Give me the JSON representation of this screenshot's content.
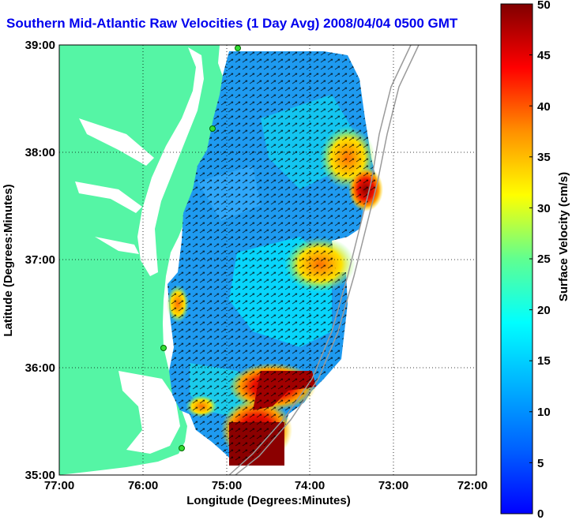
{
  "title": "Southern Mid-Atlantic Raw Velocities (1 Day Avg) 2008/04/04 0500 GMT",
  "map": {
    "xlabel": "Longitude (Degrees:Minutes)",
    "ylabel": "Latitude (Degrees:Minutes)",
    "x_ticks": [
      "77:00",
      "76:00",
      "75:00",
      "74:00",
      "73:00",
      "72:00"
    ],
    "y_ticks": [
      "39:00",
      "38:00",
      "37:00",
      "36:00",
      "35:00"
    ],
    "land_color": "#55f5a5",
    "grid": "dotted"
  },
  "colorbar": {
    "label": "Surface Velocity (cm/s)",
    "ticks": [
      "0",
      "5",
      "10",
      "15",
      "20",
      "25",
      "30",
      "35",
      "40",
      "45",
      "50"
    ],
    "colormap": "jet",
    "range": [
      0,
      50
    ]
  },
  "chart_data": {
    "type": "heatmap",
    "title": "Southern Mid-Atlantic Raw Velocities (1 Day Avg) 2008/04/04 0500 GMT",
    "xlabel": "Longitude (Degrees:Minutes)",
    "ylabel": "Latitude (Degrees:Minutes)",
    "xlim": [
      -77,
      -72
    ],
    "ylim": [
      35,
      39
    ],
    "value_label": "Surface Velocity (cm/s)",
    "value_range": [
      0,
      50
    ],
    "hotspots": [
      {
        "lon": -74.55,
        "lat": 35.3,
        "velocity": 48
      },
      {
        "lon": -74.25,
        "lat": 35.85,
        "velocity": 45
      },
      {
        "lon": -73.35,
        "lat": 37.55,
        "velocity": 42
      },
      {
        "lon": -73.85,
        "lat": 37.0,
        "velocity": 30
      },
      {
        "lon": -75.3,
        "lat": 35.65,
        "velocity": 35
      }
    ]
  }
}
